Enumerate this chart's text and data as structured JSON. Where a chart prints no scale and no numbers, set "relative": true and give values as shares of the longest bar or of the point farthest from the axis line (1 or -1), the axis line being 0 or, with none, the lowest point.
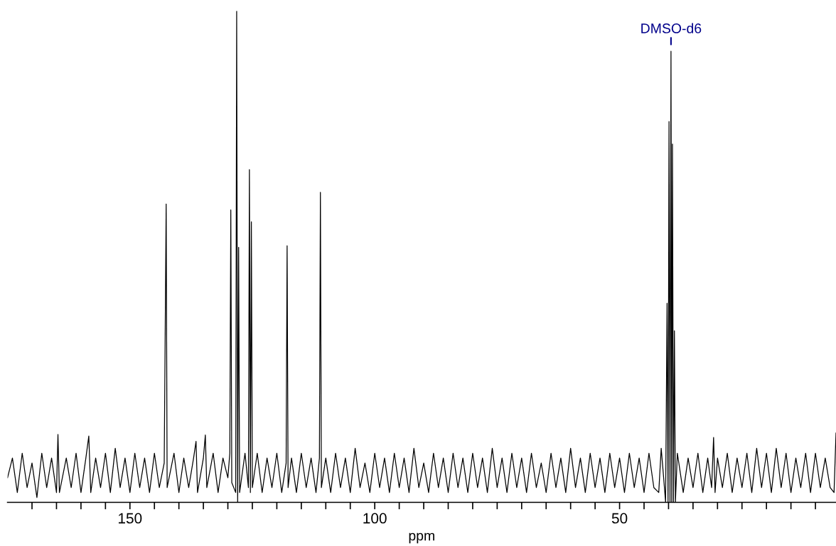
{
  "chart_data": {
    "type": "line",
    "relative": true,
    "xlabel": "ppm",
    "xlim": [
      175,
      5.8
    ],
    "xticks": [
      {
        "value": 170,
        "label": null
      },
      {
        "value": 165,
        "label": null
      },
      {
        "value": 160,
        "label": null
      },
      {
        "value": 155,
        "label": null
      },
      150,
      {
        "value": 145,
        "label": null
      },
      {
        "value": 140,
        "label": null
      },
      {
        "value": 135,
        "label": null
      },
      {
        "value": 130,
        "label": null
      },
      {
        "value": 125,
        "label": null
      },
      {
        "value": 120,
        "label": null
      },
      {
        "value": 115,
        "label": null
      },
      {
        "value": 110,
        "label": null
      },
      {
        "value": 105,
        "label": null
      },
      100,
      {
        "value": 95,
        "label": null
      },
      {
        "value": 90,
        "label": null
      },
      {
        "value": 85,
        "label": null
      },
      {
        "value": 80,
        "label": null
      },
      {
        "value": 75,
        "label": null
      },
      {
        "value": 70,
        "label": null
      },
      {
        "value": 65,
        "label": null
      },
      {
        "value": 60,
        "label": null
      },
      {
        "value": 55,
        "label": null
      },
      50,
      {
        "value": 45,
        "label": null
      },
      {
        "value": 40,
        "label": null
      },
      {
        "value": 35,
        "label": null
      },
      {
        "value": 30,
        "label": null
      },
      {
        "value": 25,
        "label": null
      },
      {
        "value": 20,
        "label": null
      },
      {
        "value": 15,
        "label": null
      },
      {
        "value": 10,
        "label": null
      }
    ],
    "grid": false,
    "marker": "none",
    "line_style": "solid",
    "annotations": [
      {
        "text": "DMSO-d6",
        "x": 39.5,
        "y": 0.918
      }
    ],
    "series": [
      {
        "color": "#000000",
        "x": [
          175,
          174,
          173,
          172,
          171,
          170,
          169,
          168,
          167,
          166,
          165,
          164.7,
          164.4,
          163,
          162,
          161,
          160,
          159,
          158.4,
          158,
          157,
          156,
          155,
          154,
          153,
          152,
          151,
          150,
          149,
          148,
          147,
          146,
          145,
          144,
          143,
          142.6,
          142.4,
          141,
          140,
          139,
          138,
          137,
          136.5,
          136.2,
          135,
          134.6,
          134.3,
          133,
          132,
          131,
          130,
          129.6,
          129.4,
          129.2,
          128.4,
          128.2,
          128.0,
          127.8,
          127.6,
          126.5,
          125.8,
          125.6,
          125.4,
          125.2,
          125.0,
          124,
          123,
          122,
          121,
          120,
          119,
          118.1,
          117.9,
          117.7,
          117,
          116,
          115,
          114,
          113,
          112,
          111.3,
          111.1,
          110.9,
          110,
          109,
          108,
          107,
          106,
          105,
          104,
          103,
          102,
          101,
          100,
          99,
          98,
          97,
          96,
          95,
          94,
          93,
          92,
          91,
          90,
          89,
          88,
          87,
          86,
          85,
          84,
          83,
          82,
          81,
          80,
          79,
          78,
          77,
          76,
          75,
          74,
          73,
          72,
          71,
          70,
          69,
          68,
          67,
          66,
          65,
          64,
          63,
          62,
          61,
          60,
          59,
          58,
          57,
          56,
          55,
          54,
          53,
          52,
          51,
          50,
          49,
          48,
          47,
          46,
          45,
          44,
          43,
          42,
          41.5,
          41,
          40.6,
          40.3,
          40.1,
          39.9,
          39.7,
          39.5,
          39.35,
          39.2,
          39.0,
          38.8,
          38.6,
          38.2,
          37,
          36,
          35,
          34,
          33,
          32,
          31.2,
          30.8,
          30.5,
          30,
          29,
          28,
          27,
          26,
          25,
          24,
          23,
          22,
          21,
          20,
          19,
          18,
          17,
          16,
          15,
          14,
          13,
          12,
          11,
          10,
          9,
          8,
          7,
          6.2,
          5.8
        ],
        "values": [
          0.05,
          0.09,
          0.02,
          0.1,
          0.03,
          0.08,
          0.01,
          0.1,
          0.03,
          0.09,
          0.02,
          0.138,
          0.02,
          0.09,
          0.03,
          0.1,
          0.02,
          0.09,
          0.135,
          0.02,
          0.09,
          0.03,
          0.1,
          0.02,
          0.11,
          0.03,
          0.09,
          0.02,
          0.1,
          0.03,
          0.09,
          0.02,
          0.1,
          0.03,
          0.08,
          0.607,
          0.03,
          0.1,
          0.02,
          0.09,
          0.03,
          0.09,
          0.124,
          0.02,
          0.09,
          0.137,
          0.03,
          0.1,
          0.02,
          0.09,
          0.05,
          0.1,
          0.595,
          0.04,
          0.02,
          1.0,
          0.0,
          0.519,
          0.02,
          0.1,
          0.03,
          0.677,
          0.02,
          0.571,
          0.03,
          0.1,
          0.02,
          0.09,
          0.03,
          0.1,
          0.02,
          0.08,
          0.522,
          0.03,
          0.09,
          0.02,
          0.1,
          0.03,
          0.09,
          0.02,
          0.09,
          0.631,
          0.03,
          0.09,
          0.02,
          0.1,
          0.03,
          0.09,
          0.02,
          0.11,
          0.03,
          0.08,
          0.02,
          0.1,
          0.03,
          0.09,
          0.02,
          0.1,
          0.03,
          0.09,
          0.02,
          0.11,
          0.03,
          0.08,
          0.02,
          0.1,
          0.03,
          0.09,
          0.02,
          0.1,
          0.03,
          0.09,
          0.02,
          0.1,
          0.03,
          0.09,
          0.02,
          0.11,
          0.03,
          0.09,
          0.02,
          0.1,
          0.03,
          0.09,
          0.02,
          0.1,
          0.03,
          0.08,
          0.02,
          0.1,
          0.03,
          0.09,
          0.02,
          0.11,
          0.03,
          0.09,
          0.02,
          0.1,
          0.03,
          0.09,
          0.02,
          0.1,
          0.03,
          0.09,
          0.02,
          0.1,
          0.03,
          0.09,
          0.02,
          0.1,
          0.03,
          0.02,
          0.11,
          0.05,
          0.0,
          0.405,
          0.0,
          0.775,
          0.0,
          0.918,
          0.0,
          0.729,
          0.0,
          0.349,
          0.0,
          0.1,
          0.02,
          0.09,
          0.03,
          0.1,
          0.02,
          0.09,
          0.03,
          0.132,
          0.02,
          0.09,
          0.03,
          0.1,
          0.02,
          0.09,
          0.03,
          0.1,
          0.02,
          0.11,
          0.03,
          0.1,
          0.02,
          0.11,
          0.03,
          0.1,
          0.02,
          0.09,
          0.03,
          0.1,
          0.02,
          0.1,
          0.03,
          0.09,
          0.03,
          0.02,
          0.141
        ]
      }
    ]
  }
}
